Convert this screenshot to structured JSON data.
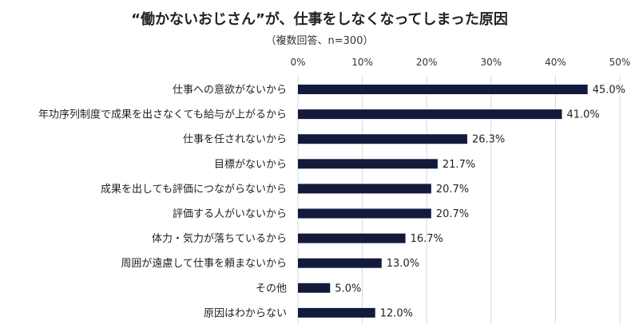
{
  "chart_data": {
    "type": "bar",
    "orientation": "horizontal",
    "title": "“働かないおじさん”が、仕事をしなくなってしまった原因",
    "subtitle": "（複数回答、n=300）",
    "categories": [
      "仕事への意欲がないから",
      "年功序列制度で成果を出さなくても給与が上がるから",
      "仕事を任されないから",
      "目標がないから",
      "成果を出しても評価につながらないから",
      "評価する人がいないから",
      "体力・気力が落ちているから",
      "周囲が遠慮して仕事を頼まないから",
      "その他",
      "原因はわからない"
    ],
    "values": [
      45.0,
      41.0,
      26.3,
      21.7,
      20.7,
      20.7,
      16.7,
      13.0,
      5.0,
      12.0
    ],
    "value_labels": [
      "45.0%",
      "41.0%",
      "26.3%",
      "21.7%",
      "20.7%",
      "20.7%",
      "16.7%",
      "13.0%",
      "5.0%",
      "12.0%"
    ],
    "xlim": [
      0,
      50
    ],
    "x_ticks": [
      "0%",
      "10%",
      "20%",
      "30%",
      "40%",
      "50%"
    ],
    "x_axis_position": "top",
    "grid": true,
    "bar_color": "#141a3c",
    "grid_color": "#d9d9d9"
  }
}
